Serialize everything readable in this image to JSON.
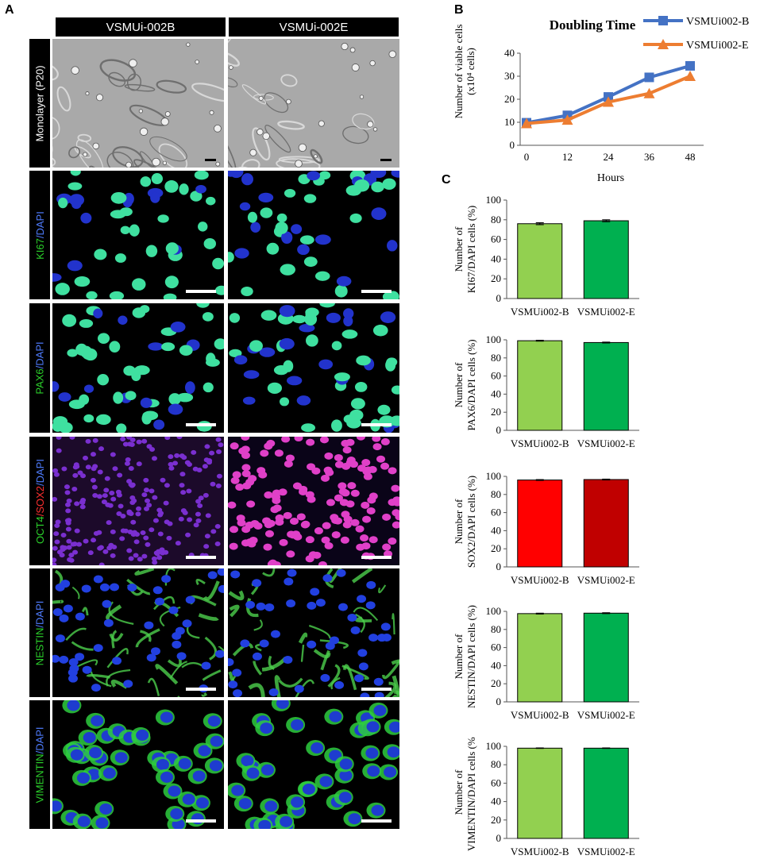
{
  "panel_labels": {
    "a": "A",
    "b": "B",
    "c": "C"
  },
  "columns": [
    "VSMUi-002B",
    "VSMUi-002E"
  ],
  "rows": [
    {
      "id": "monolayer",
      "parts": [
        {
          "text": "Monolayer (P20)",
          "color": "#ffffff"
        }
      ]
    },
    {
      "id": "ki67",
      "parts": [
        {
          "text": "KI67",
          "color": "#2bd12b"
        },
        {
          "text": "/DAPI",
          "color": "#4f7dff"
        }
      ]
    },
    {
      "id": "pax6",
      "parts": [
        {
          "text": "PAX6",
          "color": "#2bd12b"
        },
        {
          "text": "/DAPI",
          "color": "#4f7dff"
        }
      ]
    },
    {
      "id": "oct4sox2",
      "parts": [
        {
          "text": "OCT4",
          "color": "#2bd12b"
        },
        {
          "text": "/SOX2",
          "color": "#ff3030"
        },
        {
          "text": "/DAPI",
          "color": "#4f7dff"
        }
      ]
    },
    {
      "id": "nestin",
      "parts": [
        {
          "text": "NESTIN",
          "color": "#2bd12b"
        },
        {
          "text": "/DAPI",
          "color": "#4f7dff"
        }
      ]
    },
    {
      "id": "vimentin",
      "parts": [
        {
          "text": "VIMENTIN",
          "color": "#2bd12b"
        },
        {
          "text": "/DAPI",
          "color": "#4f7dff"
        }
      ]
    }
  ],
  "chart_data": [
    {
      "type": "line",
      "title": "Doubling Time",
      "xlabel": "Hours",
      "ylabel_line1": "Number of viable cells",
      "ylabel_line2": "(x10⁴ cells)",
      "x": [
        0,
        12,
        24,
        36,
        48
      ],
      "xlim": [
        0,
        48
      ],
      "ylim": [
        0,
        40
      ],
      "yticks": [
        0,
        10,
        20,
        30,
        40
      ],
      "legend_position": "top-right",
      "series": [
        {
          "name": "VSMUi002-B",
          "color": "#4472c4",
          "marker": "square",
          "values": [
            9.8,
            13,
            21,
            29.5,
            34.5
          ]
        },
        {
          "name": "VSMUi002-E",
          "color": "#ed7d31",
          "marker": "triangle",
          "values": [
            9.5,
            11,
            18.8,
            22.5,
            30
          ]
        }
      ]
    },
    {
      "type": "bar",
      "ylabel_line1": "Number of",
      "ylabel_line2": "KI67/DAPI cells (%)",
      "categories": [
        "VSMUi002-B",
        "VSMUi002-E"
      ],
      "values": [
        76,
        79
      ],
      "errors": [
        1.0,
        1.0
      ],
      "colors": [
        "#92d050",
        "#00b050"
      ],
      "ylim": [
        0,
        100
      ],
      "yticks": [
        0,
        20,
        40,
        60,
        80,
        100
      ]
    },
    {
      "type": "bar",
      "ylabel_line1": "Number of",
      "ylabel_line2": "PAX6/DAPI cells (%)",
      "categories": [
        "VSMUi002-B",
        "VSMUi002-E"
      ],
      "values": [
        99,
        97
      ],
      "errors": [
        0.5,
        0.5
      ],
      "colors": [
        "#92d050",
        "#00b050"
      ],
      "ylim": [
        0,
        100
      ],
      "yticks": [
        0,
        20,
        40,
        60,
        80,
        100
      ]
    },
    {
      "type": "bar",
      "ylabel_line1": "Number of",
      "ylabel_line2": "SOX2/DAPI cells (%)",
      "categories": [
        "VSMUi002-B",
        "VSMUi002-E"
      ],
      "values": [
        96,
        96.5
      ],
      "errors": [
        0.5,
        0.5
      ],
      "colors": [
        "#ff0000",
        "#c00000"
      ],
      "ylim": [
        0,
        100
      ],
      "yticks": [
        0,
        20,
        40,
        60,
        80,
        100
      ]
    },
    {
      "type": "bar",
      "ylabel_line1": "Number of",
      "ylabel_line2": "NESTIN/DAPI cells (%)",
      "categories": [
        "VSMUi002-B",
        "VSMUi002-E"
      ],
      "values": [
        97.5,
        98
      ],
      "errors": [
        0.5,
        0.5
      ],
      "colors": [
        "#92d050",
        "#00b050"
      ],
      "ylim": [
        0,
        100
      ],
      "yticks": [
        0,
        20,
        40,
        60,
        80,
        100
      ]
    },
    {
      "type": "bar",
      "ylabel_line1": "Number of",
      "ylabel_line2": "VIMENTIN/DAPI cells (%)",
      "categories": [
        "VSMUi002-B",
        "VSMUi002-E"
      ],
      "values": [
        98,
        98
      ],
      "errors": [
        0.3,
        0.3
      ],
      "colors": [
        "#92d050",
        "#00b050"
      ],
      "ylim": [
        0,
        100
      ],
      "yticks": [
        0,
        20,
        40,
        60,
        80,
        100
      ]
    }
  ]
}
